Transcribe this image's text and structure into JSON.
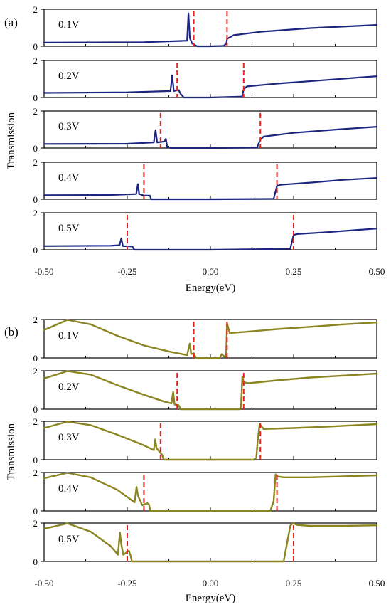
{
  "figure": {
    "panels": [
      {
        "letter": "(a)",
        "ylabel": "Transmission",
        "xlabel": "Energy(eV)",
        "color": "#1c2580",
        "style": "sharp"
      },
      {
        "letter": "(b)",
        "ylabel": "Transmission",
        "xlabel": "Energy(eV)",
        "color": "#8a8520",
        "style": "broad"
      }
    ],
    "dash_color": "#e8231e"
  },
  "chart_data": [
    {
      "type": "line",
      "panel": "(a)",
      "xlabel": "Energy(eV)",
      "ylabel": "Transmission",
      "xlim": [
        -0.5,
        0.5
      ],
      "ylim": [
        0,
        2
      ],
      "x_ticks": [
        "-0.50",
        "-0.25",
        "0.00",
        "0.25",
        "0.50"
      ],
      "y_ticks": [
        "0",
        "2"
      ],
      "subplots": [
        {
          "label": "0.1V",
          "dashes": [
            -0.05,
            0.05
          ],
          "peak": [
            -0.066,
            1.78
          ],
          "x": [
            -0.5,
            -0.2,
            -0.07,
            -0.066,
            -0.062,
            -0.055,
            -0.045,
            -0.04,
            0.0,
            0.04,
            0.048,
            0.05,
            0.07,
            0.15,
            0.3,
            0.5
          ],
          "y": [
            0.2,
            0.22,
            0.3,
            1.78,
            0.45,
            0.15,
            0.05,
            0.0,
            0.0,
            0.02,
            0.15,
            0.4,
            0.6,
            0.78,
            0.98,
            1.15
          ]
        },
        {
          "label": "0.2V",
          "dashes": [
            -0.1,
            0.1
          ],
          "peak": [
            -0.115,
            1.2
          ],
          "x": [
            -0.5,
            -0.25,
            -0.12,
            -0.115,
            -0.11,
            -0.095,
            -0.09,
            -0.08,
            0.0,
            0.095,
            0.1,
            0.11,
            0.2,
            0.35,
            0.5
          ],
          "y": [
            0.25,
            0.28,
            0.35,
            1.2,
            0.35,
            0.4,
            0.2,
            0.0,
            0.0,
            0.05,
            0.45,
            0.6,
            0.75,
            0.95,
            1.15
          ]
        },
        {
          "label": "0.3V",
          "dashes": [
            -0.15,
            0.15
          ],
          "peak": [
            -0.165,
            0.97
          ],
          "x": [
            -0.5,
            -0.25,
            -0.17,
            -0.165,
            -0.16,
            -0.138,
            -0.134,
            -0.13,
            -0.12,
            0.0,
            0.14,
            0.15,
            0.16,
            0.25,
            0.38,
            0.5
          ],
          "y": [
            0.22,
            0.23,
            0.3,
            0.97,
            0.3,
            0.35,
            0.5,
            0.05,
            0.0,
            0.0,
            0.02,
            0.45,
            0.62,
            0.82,
            1.0,
            1.15
          ]
        },
        {
          "label": "0.4V",
          "dashes": [
            -0.2,
            0.2
          ],
          "peak": [
            -0.218,
            0.82
          ],
          "x": [
            -0.5,
            -0.3,
            -0.223,
            -0.218,
            -0.214,
            -0.2,
            -0.182,
            -0.178,
            0.0,
            0.19,
            0.2,
            0.21,
            0.3,
            0.4,
            0.5
          ],
          "y": [
            0.22,
            0.23,
            0.28,
            0.82,
            0.28,
            0.2,
            0.2,
            0.0,
            0.0,
            0.02,
            0.72,
            0.78,
            0.9,
            1.05,
            1.15
          ]
        },
        {
          "label": "0.5V",
          "dashes": [
            -0.25,
            0.25
          ],
          "peak": [
            -0.268,
            0.62
          ],
          "x": [
            -0.5,
            -0.3,
            -0.273,
            -0.268,
            -0.263,
            -0.235,
            -0.228,
            0.0,
            0.24,
            0.25,
            0.26,
            0.35,
            0.45,
            0.5
          ],
          "y": [
            0.2,
            0.22,
            0.25,
            0.62,
            0.2,
            0.18,
            0.0,
            0.0,
            0.05,
            0.8,
            0.85,
            0.95,
            1.08,
            1.15
          ]
        }
      ]
    },
    {
      "type": "line",
      "panel": "(b)",
      "xlabel": "Energy(eV)",
      "ylabel": "Transmission",
      "xlim": [
        -0.5,
        0.5
      ],
      "ylim": [
        0,
        2
      ],
      "x_ticks": [
        "-0.50",
        "-0.25",
        "0.00",
        "0.25",
        "0.50"
      ],
      "y_ticks": [
        "0",
        "2"
      ],
      "subplots": [
        {
          "label": "0.1V",
          "dashes": [
            -0.05,
            0.05
          ],
          "x": [
            -0.5,
            -0.43,
            -0.36,
            -0.28,
            -0.2,
            -0.12,
            -0.07,
            -0.062,
            -0.058,
            -0.05,
            -0.045,
            -0.04,
            0.0,
            0.028,
            0.034,
            0.04,
            0.047,
            0.05,
            0.058,
            0.1,
            0.2,
            0.3,
            0.4,
            0.5
          ],
          "y": [
            1.45,
            1.98,
            1.75,
            1.15,
            0.65,
            0.32,
            0.15,
            0.75,
            0.2,
            0.25,
            0.05,
            0.0,
            0.0,
            0.0,
            0.2,
            0.1,
            0.05,
            1.8,
            1.3,
            1.35,
            1.5,
            1.62,
            1.75,
            1.85
          ]
        },
        {
          "label": "0.2V",
          "dashes": [
            -0.1,
            0.1
          ],
          "x": [
            -0.5,
            -0.43,
            -0.36,
            -0.28,
            -0.2,
            -0.14,
            -0.117,
            -0.112,
            -0.108,
            -0.095,
            -0.09,
            0.0,
            0.088,
            0.092,
            0.096,
            0.1,
            0.115,
            0.2,
            0.3,
            0.4,
            0.5
          ],
          "y": [
            1.6,
            1.98,
            1.8,
            1.25,
            0.75,
            0.4,
            0.3,
            0.9,
            0.25,
            0.2,
            0.0,
            0.0,
            0.0,
            0.15,
            1.7,
            1.4,
            1.35,
            1.5,
            1.65,
            1.75,
            1.85
          ]
        },
        {
          "label": "0.3V",
          "dashes": [
            -0.15,
            0.15
          ],
          "x": [
            -0.5,
            -0.43,
            -0.36,
            -0.28,
            -0.2,
            -0.17,
            -0.166,
            -0.162,
            -0.155,
            -0.145,
            -0.14,
            0.0,
            0.13,
            0.138,
            0.142,
            0.148,
            0.16,
            0.25,
            0.35,
            0.5
          ],
          "y": [
            1.65,
            1.98,
            1.8,
            1.3,
            0.75,
            0.5,
            1.05,
            0.6,
            0.45,
            0.25,
            0.0,
            0.0,
            0.0,
            0.1,
            1.0,
            1.85,
            1.6,
            1.65,
            1.72,
            1.85
          ]
        },
        {
          "label": "0.4V",
          "dashes": [
            -0.2,
            0.2
          ],
          "x": [
            -0.5,
            -0.43,
            -0.36,
            -0.28,
            -0.228,
            -0.222,
            -0.218,
            -0.205,
            -0.19,
            -0.185,
            -0.18,
            0.0,
            0.18,
            0.19,
            0.196,
            0.2,
            0.22,
            0.3,
            0.4,
            0.5
          ],
          "y": [
            1.7,
            1.98,
            1.75,
            1.1,
            0.45,
            1.25,
            0.8,
            0.3,
            0.4,
            0.35,
            0.0,
            0.0,
            0.0,
            0.5,
            1.9,
            1.8,
            1.75,
            1.75,
            1.8,
            1.85
          ]
        },
        {
          "label": "0.5V",
          "dashes": [
            -0.25,
            0.25
          ],
          "x": [
            -0.5,
            -0.43,
            -0.36,
            -0.3,
            -0.278,
            -0.272,
            -0.268,
            -0.262,
            -0.245,
            -0.24,
            -0.236,
            0.0,
            0.22,
            0.24,
            0.248,
            0.26,
            0.3,
            0.4,
            0.5
          ],
          "y": [
            1.7,
            1.98,
            1.55,
            0.8,
            0.35,
            1.5,
            0.9,
            0.35,
            0.55,
            0.3,
            0.0,
            0.0,
            0.0,
            1.85,
            2.0,
            1.9,
            1.85,
            1.85,
            1.88
          ]
        }
      ]
    }
  ]
}
